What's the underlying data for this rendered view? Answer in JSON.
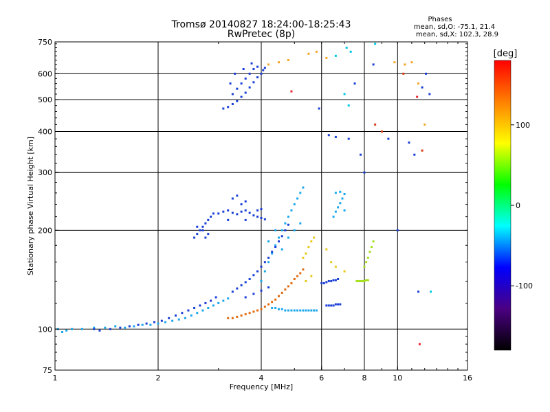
{
  "chart_data": {
    "type": "scatter",
    "title": "Tromsø 20140827 18:24:00-18:25:43",
    "subtitle": "RwPretec (8p)",
    "xlabel": "Frequency [MHz]",
    "ylabel": "Stationary phase Virtual Height [km]",
    "x_scale": "log",
    "y_scale": "log",
    "xlim": [
      1,
      16
    ],
    "ylim": [
      75,
      750
    ],
    "x_ticks": [
      1,
      2,
      4,
      6,
      8,
      10,
      16
    ],
    "x_tick_labels": [
      "1",
      "2",
      "4",
      "6",
      "8",
      "10",
      "16"
    ],
    "y_ticks": [
      75,
      100,
      200,
      300,
      400,
      500,
      600,
      750
    ],
    "y_tick_labels": [
      "75",
      "100",
      "200",
      "300",
      "400",
      "500",
      "600",
      "750"
    ],
    "grid": true,
    "colorbar": {
      "label": "[deg]",
      "range": [
        -180,
        180
      ],
      "ticks": [
        100,
        0,
        -100
      ],
      "tick_labels": [
        "100",
        "0",
        "-100"
      ],
      "colors": [
        "#000000",
        "#4b0082",
        "#0000ff",
        "#00ffff",
        "#00ff00",
        "#ffff00",
        "#ff8000",
        "#ff0000"
      ]
    },
    "legend": {
      "title": "Phases",
      "lines": [
        "mean, sd,O: -75.1, 21.4",
        "mean, sd,X: 102.3, 28.9"
      ]
    },
    "series": [
      {
        "name": "",
        "color": "#1aa7ec",
        "phase": -60,
        "points": [
          [
            1.02,
            100
          ],
          [
            1.05,
            98
          ],
          [
            1.08,
            99
          ],
          [
            1.12,
            100
          ],
          [
            1.2,
            100
          ],
          [
            1.3,
            101
          ],
          [
            1.4,
            101
          ],
          [
            1.5,
            102
          ],
          [
            1.6,
            101
          ],
          [
            1.7,
            102
          ],
          [
            1.8,
            103
          ],
          [
            1.9,
            103
          ],
          [
            2.0,
            104
          ],
          [
            2.1,
            105
          ],
          [
            2.2,
            106
          ],
          [
            2.3,
            107
          ],
          [
            2.4,
            108
          ],
          [
            2.5,
            110
          ],
          [
            2.6,
            112
          ],
          [
            2.7,
            114
          ],
          [
            2.8,
            116
          ],
          [
            2.9,
            118
          ],
          [
            3.0,
            120
          ],
          [
            3.1,
            122
          ],
          [
            3.2,
            124
          ]
        ]
      },
      {
        "name": "",
        "color": "#e06a10",
        "phase": 150,
        "points": [
          [
            3.2,
            108
          ],
          [
            3.3,
            108
          ],
          [
            3.4,
            109
          ],
          [
            3.5,
            110
          ],
          [
            3.6,
            111
          ],
          [
            3.7,
            112
          ],
          [
            3.8,
            113
          ],
          [
            3.9,
            114
          ],
          [
            4.0,
            115
          ],
          [
            4.1,
            117
          ],
          [
            4.2,
            119
          ],
          [
            4.3,
            121
          ],
          [
            4.4,
            123
          ],
          [
            4.5,
            126
          ],
          [
            4.6,
            129
          ],
          [
            4.7,
            132
          ],
          [
            4.8,
            135
          ],
          [
            4.9,
            138
          ],
          [
            5.0,
            142
          ],
          [
            5.1,
            145
          ],
          [
            5.2,
            148
          ],
          [
            5.3,
            152
          ]
        ]
      },
      {
        "name": "",
        "color": "#1aa7ec",
        "phase": -60,
        "points": [
          [
            4.3,
            116
          ],
          [
            4.4,
            116
          ],
          [
            4.5,
            115
          ],
          [
            4.6,
            115
          ],
          [
            4.7,
            114
          ],
          [
            4.8,
            114
          ],
          [
            4.9,
            114
          ],
          [
            5.0,
            114
          ],
          [
            5.1,
            114
          ],
          [
            5.2,
            114
          ],
          [
            5.3,
            114
          ],
          [
            5.4,
            114
          ],
          [
            5.5,
            114
          ],
          [
            5.6,
            114
          ],
          [
            5.7,
            114
          ],
          [
            5.8,
            114
          ]
        ]
      },
      {
        "name": "",
        "color": "#1a3fd6",
        "phase": -110,
        "points": [
          [
            3.1,
            470
          ],
          [
            3.2,
            475
          ],
          [
            3.3,
            485
          ],
          [
            3.4,
            495
          ],
          [
            3.5,
            510
          ],
          [
            3.6,
            525
          ],
          [
            3.7,
            545
          ],
          [
            3.8,
            565
          ],
          [
            3.9,
            585
          ],
          [
            4.0,
            600
          ],
          [
            4.05,
            615
          ],
          [
            4.1,
            625
          ],
          [
            3.3,
            520
          ],
          [
            3.4,
            540
          ],
          [
            3.5,
            560
          ],
          [
            3.6,
            580
          ],
          [
            3.7,
            600
          ],
          [
            3.8,
            620
          ],
          [
            3.9,
            630
          ],
          [
            3.25,
            560
          ],
          [
            3.35,
            600
          ],
          [
            3.55,
            620
          ],
          [
            3.75,
            645
          ]
        ]
      },
      {
        "name": "",
        "color": "#1a3fd6",
        "phase": -110,
        "points": [
          [
            3.0,
            225
          ],
          [
            3.1,
            228
          ],
          [
            3.2,
            230
          ],
          [
            3.3,
            226
          ],
          [
            3.4,
            224
          ],
          [
            3.5,
            228
          ],
          [
            3.6,
            230
          ],
          [
            3.7,
            226
          ],
          [
            3.8,
            222
          ],
          [
            3.9,
            220
          ],
          [
            4.0,
            218
          ],
          [
            4.1,
            216
          ],
          [
            3.3,
            250
          ],
          [
            3.4,
            255
          ],
          [
            3.5,
            240
          ],
          [
            3.6,
            245
          ],
          [
            3.2,
            215
          ],
          [
            3.6,
            215
          ],
          [
            3.9,
            230
          ],
          [
            4.0,
            232
          ]
        ]
      },
      {
        "name": "",
        "color": "#1a3fd6",
        "phase": -110,
        "points": [
          [
            2.55,
            190
          ],
          [
            2.6,
            195
          ],
          [
            2.65,
            200
          ],
          [
            2.7,
            205
          ],
          [
            2.75,
            210
          ],
          [
            2.8,
            215
          ],
          [
            2.85,
            220
          ],
          [
            2.9,
            225
          ],
          [
            2.6,
            205
          ],
          [
            2.7,
            200
          ],
          [
            2.8,
            195
          ],
          [
            2.75,
            190
          ]
        ]
      },
      {
        "name": "",
        "color": "#1aa7ec",
        "phase": -60,
        "points": [
          [
            4.0,
            140
          ],
          [
            4.1,
            150
          ],
          [
            4.2,
            160
          ],
          [
            4.3,
            170
          ],
          [
            4.4,
            180
          ],
          [
            4.5,
            190
          ],
          [
            4.6,
            200
          ],
          [
            4.7,
            210
          ],
          [
            4.8,
            220
          ],
          [
            4.9,
            230
          ],
          [
            5.0,
            240
          ],
          [
            5.1,
            250
          ],
          [
            5.2,
            260
          ],
          [
            5.3,
            270
          ],
          [
            4.2,
            185
          ],
          [
            4.4,
            200
          ],
          [
            4.6,
            175
          ],
          [
            4.8,
            190
          ],
          [
            5.0,
            200
          ],
          [
            5.2,
            210
          ]
        ]
      },
      {
        "name": "",
        "color": "#1a3fd6",
        "phase": -110,
        "points": [
          [
            3.3,
            130
          ],
          [
            3.4,
            133
          ],
          [
            3.5,
            136
          ],
          [
            3.6,
            139
          ],
          [
            3.7,
            142
          ],
          [
            3.8,
            146
          ],
          [
            3.9,
            150
          ],
          [
            4.0,
            155
          ],
          [
            4.1,
            160
          ],
          [
            4.2,
            165
          ],
          [
            4.3,
            172
          ],
          [
            4.4,
            178
          ],
          [
            4.5,
            185
          ],
          [
            4.6,
            192
          ],
          [
            4.7,
            200
          ],
          [
            4.8,
            208
          ],
          [
            3.6,
            125
          ],
          [
            3.8,
            128
          ],
          [
            4.0,
            131
          ],
          [
            4.2,
            134
          ]
        ]
      },
      {
        "name": "",
        "color": "#1a3fd6",
        "phase": -110,
        "points": [
          [
            6.0,
            138
          ],
          [
            6.1,
            138
          ],
          [
            6.2,
            139
          ],
          [
            6.3,
            140
          ],
          [
            6.4,
            140
          ],
          [
            6.5,
            141
          ],
          [
            6.6,
            141
          ],
          [
            6.7,
            142
          ],
          [
            6.2,
            118
          ],
          [
            6.3,
            118
          ],
          [
            6.4,
            118
          ],
          [
            6.5,
            118
          ],
          [
            6.6,
            119
          ],
          [
            6.7,
            119
          ],
          [
            6.8,
            119
          ]
        ]
      },
      {
        "name": "",
        "color": "#1aa7ec",
        "phase": -60,
        "points": [
          [
            6.5,
            220
          ],
          [
            6.6,
            228
          ],
          [
            6.7,
            235
          ],
          [
            6.8,
            242
          ],
          [
            6.9,
            250
          ],
          [
            7.0,
            258
          ],
          [
            6.6,
            260
          ],
          [
            6.8,
            262
          ],
          [
            7.0,
            230
          ]
        ]
      },
      {
        "name": "",
        "color": "#a6e020",
        "phase": 60,
        "points": [
          [
            7.6,
            140
          ],
          [
            7.7,
            140
          ],
          [
            7.8,
            140
          ],
          [
            7.9,
            140
          ],
          [
            8.0,
            140
          ],
          [
            8.1,
            141
          ],
          [
            8.2,
            141
          ],
          [
            8.0,
            155
          ],
          [
            8.1,
            160
          ],
          [
            8.2,
            165
          ],
          [
            8.3,
            172
          ],
          [
            8.4,
            178
          ],
          [
            8.5,
            185
          ]
        ]
      },
      {
        "name": "",
        "color": "#e8c81a",
        "phase": 90,
        "points": [
          [
            5.3,
            165
          ],
          [
            5.4,
            170
          ],
          [
            5.5,
            178
          ],
          [
            5.6,
            185
          ],
          [
            5.7,
            190
          ],
          [
            6.2,
            175
          ],
          [
            6.4,
            160
          ],
          [
            6.6,
            155
          ],
          [
            7.0,
            150
          ],
          [
            5.4,
            140
          ],
          [
            5.6,
            145
          ]
        ]
      },
      {
        "name": "",
        "color": "#f5a623",
        "phase": 140,
        "points": [
          [
            4.2,
            640
          ],
          [
            4.5,
            650
          ],
          [
            4.8,
            660
          ],
          [
            5.5,
            690
          ],
          [
            5.8,
            700
          ],
          [
            6.2,
            670
          ],
          [
            9.8,
            650
          ],
          [
            10.5,
            640
          ],
          [
            11.0,
            650
          ],
          [
            12.0,
            420
          ],
          [
            11.5,
            560
          ]
        ]
      },
      {
        "name": "",
        "color": "#e8282f",
        "phase": 170,
        "points": [
          [
            4.9,
            530
          ],
          [
            11.4,
            510
          ],
          [
            11.6,
            90
          ]
        ]
      },
      {
        "name": "",
        "color": "#00c8e6",
        "phase": -30,
        "points": [
          [
            6.6,
            680
          ],
          [
            7.1,
            720
          ],
          [
            7.3,
            700
          ],
          [
            8.6,
            740
          ],
          [
            7.0,
            520
          ],
          [
            7.2,
            480
          ],
          [
            12.5,
            130
          ]
        ]
      },
      {
        "name": "",
        "color": "#1a3fd6",
        "phase": -110,
        "points": [
          [
            5.9,
            470
          ],
          [
            6.3,
            390
          ],
          [
            6.6,
            385
          ],
          [
            7.2,
            380
          ],
          [
            7.5,
            560
          ],
          [
            7.8,
            340
          ],
          [
            8.5,
            640
          ],
          [
            9.4,
            380
          ],
          [
            10.8,
            370
          ],
          [
            11.2,
            340
          ],
          [
            11.8,
            545
          ],
          [
            12.1,
            600
          ],
          [
            12.4,
            520
          ],
          [
            10.0,
            200
          ],
          [
            11.5,
            130
          ],
          [
            8.0,
            300
          ]
        ]
      },
      {
        "name": "",
        "color": "#d63c14",
        "phase": 160,
        "points": [
          [
            8.6,
            420
          ],
          [
            9.0,
            400
          ],
          [
            10.4,
            600
          ],
          [
            11.8,
            350
          ]
        ]
      },
      {
        "name": "",
        "color": "#1a3fd6",
        "phase": -110,
        "points": [
          [
            1.3,
            100
          ],
          [
            1.35,
            99
          ],
          [
            1.45,
            100
          ],
          [
            1.55,
            101
          ],
          [
            1.65,
            102
          ],
          [
            1.75,
            103
          ],
          [
            1.85,
            104
          ],
          [
            1.95,
            105
          ],
          [
            2.05,
            106
          ],
          [
            2.15,
            108
          ],
          [
            2.25,
            110
          ],
          [
            2.35,
            112
          ],
          [
            2.45,
            114
          ],
          [
            2.55,
            116
          ],
          [
            2.65,
            118
          ],
          [
            2.75,
            120
          ],
          [
            2.85,
            122
          ],
          [
            2.95,
            125
          ]
        ]
      }
    ]
  }
}
